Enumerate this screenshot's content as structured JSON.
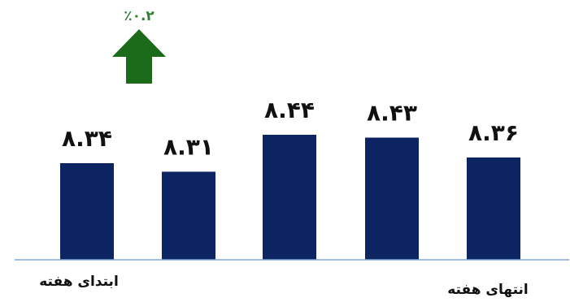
{
  "chart_data": {
    "type": "bar",
    "categories": [
      "ابتدای هفته",
      "",
      "",
      "",
      "انتهای هفته"
    ],
    "values": [
      8.34,
      8.31,
      8.44,
      8.43,
      8.36
    ],
    "value_labels": [
      "۸.۳۴",
      "۸.۳۱",
      "۸.۴۴",
      "۸.۴۳",
      "۸.۳۶"
    ],
    "ylim": [
      8.0,
      8.5
    ],
    "grid": false,
    "legend": "none",
    "bar_color": "#0c2461",
    "axis_color": "#7fa7d6",
    "title": "",
    "xlabel": "",
    "ylabel": "",
    "annotation": {
      "text": "٪۰.۲",
      "direction": "up",
      "color": "#2e7d32",
      "arrow_color": "#1b6b1b"
    }
  }
}
